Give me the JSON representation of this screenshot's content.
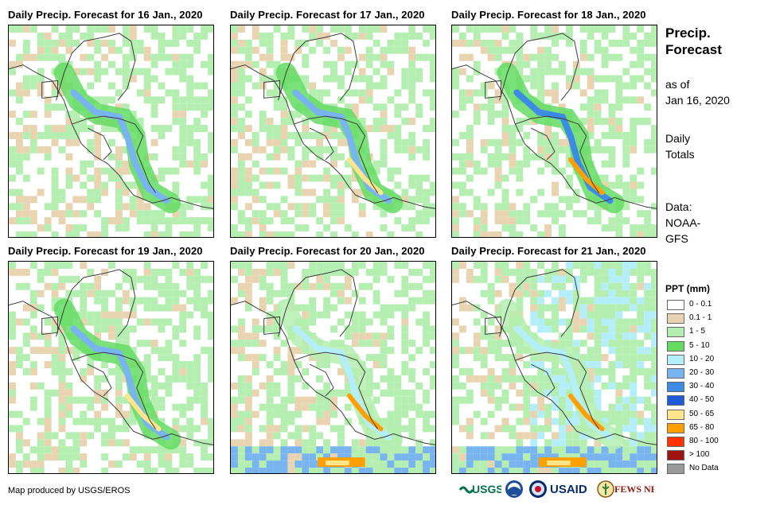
{
  "panels": [
    {
      "title": "Daily Precip. Forecast for 16 Jan., 2020"
    },
    {
      "title": "Daily Precip. Forecast for 17 Jan., 2020"
    },
    {
      "title": "Daily Precip. Forecast for 18 Jan., 2020"
    },
    {
      "title": "Daily Precip. Forecast for 19 Jan., 2020"
    },
    {
      "title": "Daily Precip. Forecast for 20 Jan., 2020"
    },
    {
      "title": "Daily Precip. Forecast for 21 Jan., 2020"
    }
  ],
  "side": {
    "title_line1": "Precip.",
    "title_line2": "Forecast",
    "asof_line1": "as of",
    "asof_line2": "Jan 16, 2020",
    "daily_line1": "Daily",
    "daily_line2": "Totals",
    "data_line1": "Data:",
    "data_line2": "NOAA-",
    "data_line3": "GFS"
  },
  "legend": {
    "title": "PPT (mm)",
    "items": [
      {
        "label": "0 - 0.1",
        "color": "#ffffff"
      },
      {
        "label": "0.1 - 1",
        "color": "#e8d4b0"
      },
      {
        "label": "1 - 5",
        "color": "#b4eeb0"
      },
      {
        "label": "5 - 10",
        "color": "#64dc64"
      },
      {
        "label": "10 - 20",
        "color": "#b4eefa"
      },
      {
        "label": "20 - 30",
        "color": "#78b4f0"
      },
      {
        "label": "30 - 40",
        "color": "#3c8ce6"
      },
      {
        "label": "40 - 50",
        "color": "#1e5adc"
      },
      {
        "label": "50 - 65",
        "color": "#ffe68c"
      },
      {
        "label": "65 - 80",
        "color": "#ffa000"
      },
      {
        "label": "80 - 100",
        "color": "#ff3200"
      },
      {
        "label": "> 100",
        "color": "#a01414"
      },
      {
        "label": "No Data",
        "color": "#9a9a9a"
      }
    ]
  },
  "footer": {
    "credit": "Map produced by USGS/EROS"
  },
  "logos": {
    "usgs": "USGS",
    "usaid": "USAID",
    "fewsnet": "FEWS NET"
  }
}
